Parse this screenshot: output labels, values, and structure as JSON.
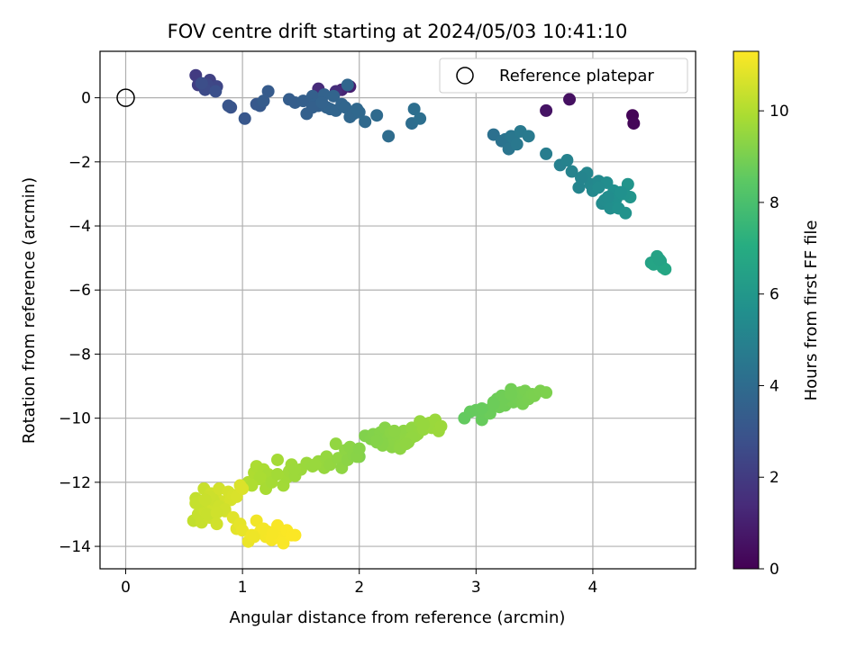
{
  "chart_data": {
    "type": "scatter",
    "title": "FOV centre drift starting at 2024/05/03 10:41:10",
    "xlabel": "Angular distance from reference (arcmin)",
    "ylabel": "Rotation from reference (arcmin)",
    "xlim": [
      -0.22,
      4.88
    ],
    "ylim": [
      -14.7,
      1.45
    ],
    "xticks": [
      0,
      1,
      2,
      3,
      4
    ],
    "yticks": [
      0,
      -2,
      -4,
      -6,
      -8,
      -10,
      -12,
      -14
    ],
    "grid": true,
    "legend": {
      "placement": "top-right",
      "entries": [
        "Reference platepar"
      ]
    },
    "reference_point": {
      "x": 0,
      "y": 0,
      "marker": "open-circle"
    },
    "colorbar": {
      "label": "Hours from first FF file",
      "colormap": "viridis",
      "range": [
        0,
        11.3
      ],
      "ticks": [
        0,
        2,
        4,
        6,
        8,
        10
      ]
    },
    "series": [
      {
        "x": [
          4.34,
          4.35,
          3.8,
          3.6,
          1.92,
          1.85,
          1.65,
          1.8
        ],
        "y": [
          -0.55,
          -0.8,
          -0.05,
          -0.4,
          0.35,
          0.25,
          0.28,
          0.2
        ],
        "c": [
          0.1,
          0.15,
          0.5,
          0.6,
          1.0,
          1.2,
          1.4,
          1.5
        ]
      },
      {
        "x": [
          0.6,
          0.62,
          0.72,
          0.75,
          0.78,
          0.7,
          0.68,
          0.65,
          0.77,
          0.9,
          0.88,
          1.02,
          1.12,
          1.15,
          1.22,
          1.18,
          1.4,
          1.45,
          1.52,
          1.55,
          1.6,
          1.62,
          1.65,
          1.7,
          1.72,
          1.75,
          1.78,
          1.8,
          1.85,
          1.88,
          1.9,
          1.92,
          1.95,
          1.98,
          2.0,
          2.05,
          2.15,
          2.25,
          2.45,
          2.47,
          2.52,
          1.6,
          1.68
        ],
        "y": [
          0.7,
          0.4,
          0.55,
          0.3,
          0.35,
          0.4,
          0.25,
          0.45,
          0.2,
          -0.3,
          -0.25,
          -0.65,
          -0.2,
          -0.25,
          0.2,
          -0.1,
          -0.05,
          -0.15,
          -0.1,
          -0.5,
          0.05,
          -0.2,
          -0.25,
          0.1,
          -0.3,
          -0.35,
          0.05,
          -0.4,
          -0.2,
          -0.3,
          0.4,
          -0.6,
          -0.5,
          -0.35,
          -0.45,
          -0.75,
          -0.55,
          -1.2,
          -0.8,
          -0.35,
          -0.65,
          -0.3,
          -0.15
        ],
        "c": [
          2.0,
          2.1,
          2.2,
          2.3,
          2.4,
          2.5,
          2.6,
          2.7,
          2.8,
          2.9,
          3.0,
          3.1,
          3.15,
          3.2,
          3.25,
          3.3,
          3.35,
          3.4,
          3.45,
          3.5,
          3.5,
          3.55,
          3.55,
          3.6,
          3.6,
          3.65,
          3.65,
          3.7,
          3.7,
          3.75,
          3.75,
          3.8,
          3.8,
          3.85,
          3.85,
          3.9,
          3.95,
          4.0,
          4.05,
          4.1,
          4.15,
          3.5,
          3.6
        ]
      },
      {
        "x": [
          3.15,
          3.22,
          3.25,
          3.28,
          3.3,
          3.32,
          3.35,
          3.38,
          3.45,
          3.6,
          3.72,
          3.78,
          3.82,
          3.88,
          3.92,
          3.95,
          3.98,
          4.0,
          4.05,
          4.08,
          4.1,
          4.12,
          4.15,
          4.18,
          4.2,
          4.22,
          4.25,
          4.28,
          4.3,
          4.32,
          4.27,
          4.24,
          4.13,
          4.05,
          3.9
        ],
        "y": [
          -1.15,
          -1.35,
          -1.3,
          -1.6,
          -1.2,
          -1.25,
          -1.45,
          -1.05,
          -1.2,
          -1.75,
          -2.1,
          -1.95,
          -2.3,
          -2.8,
          -2.45,
          -2.35,
          -2.7,
          -2.9,
          -2.6,
          -3.3,
          -3.2,
          -2.65,
          -3.45,
          -2.9,
          -3.15,
          -3.45,
          -3.0,
          -3.6,
          -2.7,
          -3.1,
          -3.0,
          -2.95,
          -3.1,
          -2.8,
          -2.5
        ],
        "c": [
          4.2,
          4.3,
          4.35,
          4.4,
          4.45,
          4.5,
          4.55,
          4.6,
          4.65,
          4.8,
          4.9,
          5.0,
          5.05,
          5.1,
          5.15,
          5.2,
          5.25,
          5.3,
          5.35,
          5.4,
          5.45,
          5.5,
          5.55,
          5.6,
          5.65,
          5.7,
          5.75,
          5.8,
          5.85,
          5.9,
          5.8,
          5.7,
          5.5,
          5.4,
          5.1
        ]
      },
      {
        "x": [
          4.5,
          4.55,
          4.58,
          4.6,
          4.62,
          4.52,
          4.57
        ],
        "y": [
          -5.15,
          -4.95,
          -5.1,
          -5.3,
          -5.35,
          -5.2,
          -5.05
        ],
        "c": [
          6.5,
          6.55,
          6.6,
          6.65,
          6.7,
          6.6,
          6.55
        ]
      },
      {
        "x": [
          2.9,
          2.95,
          3.0,
          3.05,
          3.08,
          3.1,
          3.12,
          3.15,
          3.18,
          3.2,
          3.22,
          3.25,
          3.28,
          3.3,
          3.32,
          3.35,
          3.38,
          3.4,
          3.42,
          3.45,
          3.48,
          3.5,
          3.55,
          3.6,
          3.05,
          3.15,
          3.25,
          3.3
        ],
        "y": [
          -10.0,
          -9.8,
          -9.75,
          -10.05,
          -9.8,
          -9.75,
          -9.85,
          -9.5,
          -9.4,
          -9.65,
          -9.3,
          -9.6,
          -9.45,
          -9.1,
          -9.5,
          -9.35,
          -9.2,
          -9.55,
          -9.15,
          -9.4,
          -9.25,
          -9.3,
          -9.15,
          -9.2,
          -9.7,
          -9.55,
          -9.35,
          -9.25
        ],
        "c": [
          8.6,
          8.62,
          8.65,
          8.67,
          8.7,
          8.72,
          8.74,
          8.76,
          8.78,
          8.8,
          8.82,
          8.84,
          8.86,
          8.88,
          8.9,
          8.92,
          8.94,
          8.96,
          8.98,
          9.0,
          9.02,
          9.04,
          9.06,
          9.08,
          8.68,
          8.76,
          8.84,
          8.9
        ]
      },
      {
        "x": [
          1.95,
          2.0,
          2.05,
          2.1,
          2.12,
          2.15,
          2.18,
          2.2,
          2.22,
          2.25,
          2.28,
          2.3,
          2.32,
          2.35,
          2.38,
          2.4,
          2.42,
          2.45,
          2.48,
          2.5,
          2.52,
          2.55,
          2.58,
          2.6,
          2.62,
          2.65,
          2.68,
          2.7,
          2.2,
          2.27,
          2.35,
          2.45,
          2.55,
          2.15,
          2.3,
          2.4,
          1.9
        ],
        "y": [
          -11.0,
          -11.2,
          -10.55,
          -10.65,
          -10.5,
          -10.75,
          -10.45,
          -10.85,
          -10.3,
          -10.6,
          -10.9,
          -10.7,
          -10.55,
          -10.85,
          -10.4,
          -10.65,
          -10.75,
          -10.3,
          -10.55,
          -10.5,
          -10.1,
          -10.35,
          -10.2,
          -10.15,
          -10.3,
          -10.05,
          -10.4,
          -10.25,
          -10.8,
          -10.45,
          -10.95,
          -10.6,
          -10.2,
          -10.7,
          -10.4,
          -10.8,
          -11.15
        ],
        "c": [
          9.1,
          9.12,
          9.14,
          9.16,
          9.18,
          9.2,
          9.22,
          9.24,
          9.26,
          9.28,
          9.3,
          9.32,
          9.34,
          9.36,
          9.38,
          9.4,
          9.42,
          9.44,
          9.46,
          9.48,
          9.5,
          9.52,
          9.54,
          9.56,
          9.58,
          9.6,
          9.62,
          9.64,
          9.25,
          9.3,
          9.38,
          9.45,
          9.53,
          9.22,
          9.35,
          9.42,
          9.05
        ]
      },
      {
        "x": [
          1.05,
          1.1,
          1.12,
          1.15,
          1.18,
          1.2,
          1.22,
          1.25,
          1.3,
          1.35,
          1.38,
          1.4,
          1.42,
          1.45,
          1.5,
          1.55,
          1.6,
          1.65,
          1.7,
          1.72,
          1.75,
          1.8,
          1.82,
          1.85,
          1.88,
          1.9,
          1.92,
          1.95,
          1.98,
          2.0,
          1.62,
          1.45,
          1.3,
          1.15,
          1.08
        ],
        "y": [
          -12.0,
          -11.7,
          -11.5,
          -11.9,
          -11.6,
          -12.2,
          -11.75,
          -12.0,
          -11.3,
          -12.1,
          -11.85,
          -11.65,
          -11.45,
          -11.8,
          -11.6,
          -11.4,
          -11.5,
          -11.35,
          -11.55,
          -11.2,
          -11.45,
          -10.8,
          -11.25,
          -11.55,
          -11.0,
          -11.3,
          -10.9,
          -11.15,
          -11.2,
          -10.95,
          -11.45,
          -11.6,
          -11.75,
          -11.85,
          -12.1
        ],
        "c": [
          10.0,
          9.95,
          9.93,
          9.9,
          9.88,
          9.85,
          9.83,
          9.8,
          9.78,
          9.75,
          9.73,
          9.7,
          9.68,
          9.65,
          9.63,
          9.6,
          9.58,
          9.55,
          9.53,
          9.5,
          9.48,
          9.45,
          9.43,
          9.4,
          9.38,
          9.35,
          9.33,
          9.3,
          9.28,
          9.25,
          9.58,
          9.66,
          9.76,
          9.88,
          9.96
        ]
      },
      {
        "x": [
          0.58,
          0.6,
          0.62,
          0.64,
          0.65,
          0.67,
          0.68,
          0.7,
          0.72,
          0.73,
          0.75,
          0.77,
          0.78,
          0.8,
          0.82,
          0.85,
          0.88,
          0.9,
          0.92,
          0.95,
          0.98,
          1.0,
          0.75,
          0.7,
          0.8,
          0.85,
          0.65,
          0.72,
          0.78,
          0.6,
          0.68
        ],
        "y": [
          -13.2,
          -12.5,
          -13.0,
          -12.7,
          -13.25,
          -12.2,
          -12.9,
          -12.6,
          -13.1,
          -12.35,
          -12.8,
          -12.4,
          -13.3,
          -12.2,
          -12.6,
          -12.9,
          -12.3,
          -12.55,
          -12.4,
          -12.45,
          -12.1,
          -12.2,
          -12.55,
          -13.0,
          -12.75,
          -12.85,
          -12.6,
          -12.45,
          -12.95,
          -12.65,
          -12.55
        ],
        "c": [
          10.3,
          10.32,
          10.34,
          10.36,
          10.38,
          10.4,
          10.42,
          10.44,
          10.46,
          10.48,
          10.5,
          10.52,
          10.54,
          10.56,
          10.58,
          10.6,
          10.62,
          10.64,
          10.66,
          10.68,
          10.7,
          10.72,
          10.45,
          10.4,
          10.5,
          10.55,
          10.38,
          10.46,
          10.52,
          10.34,
          10.42
        ]
      },
      {
        "x": [
          0.92,
          0.95,
          0.98,
          1.0,
          1.05,
          1.08,
          1.12,
          1.15,
          1.2,
          1.22,
          1.25,
          1.28,
          1.3,
          1.32,
          1.35,
          1.38,
          1.42,
          1.45,
          1.1,
          1.18,
          1.26
        ],
        "y": [
          -13.1,
          -13.45,
          -13.3,
          -13.5,
          -13.85,
          -13.65,
          -13.2,
          -13.55,
          -13.7,
          -13.55,
          -13.8,
          -13.6,
          -13.35,
          -13.75,
          -13.9,
          -13.5,
          -13.65,
          -13.65,
          -13.7,
          -13.45,
          -13.6
        ],
        "c": [
          10.8,
          10.85,
          10.9,
          10.95,
          11.0,
          11.05,
          11.1,
          11.12,
          11.15,
          11.17,
          11.19,
          11.2,
          11.22,
          11.23,
          11.24,
          11.25,
          11.26,
          11.27,
          11.05,
          11.14,
          11.2
        ]
      }
    ]
  }
}
